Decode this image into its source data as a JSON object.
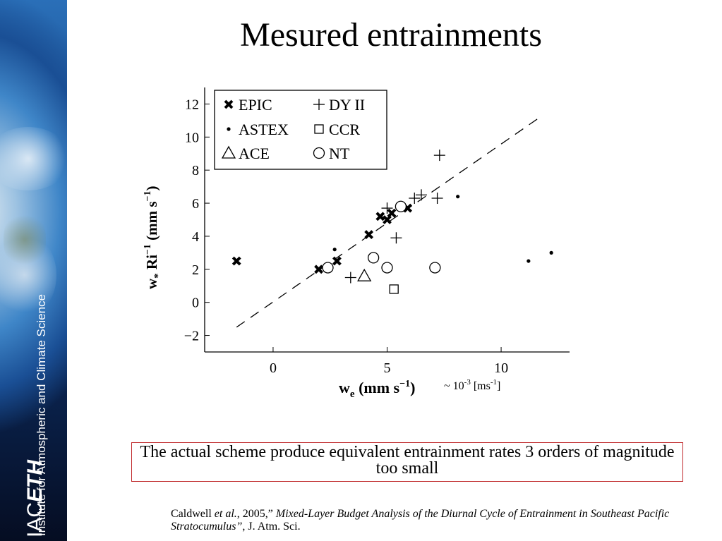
{
  "title": "Mesured entrainments",
  "sidebar": {
    "logo_iac": "IAC",
    "logo_eth": "ETH",
    "institute": "Institute for Atmospheric and Climate Science"
  },
  "chart_data": {
    "type": "scatter",
    "title": "",
    "xlabel": "w",
    "xlabel_sub": "e",
    "xlabel_units": "(mm s−1)",
    "xlabel_note": "~ 10-3 [ms-1]",
    "ylabel": "w* Ri−1 (mm s−1)",
    "xlim": [
      -3,
      13
    ],
    "ylim": [
      -3,
      13
    ],
    "xticks": [
      0,
      5,
      10
    ],
    "yticks": [
      -2,
      0,
      2,
      4,
      6,
      8,
      10,
      12
    ],
    "legend_position": "top-left",
    "grid": false,
    "reference_line": {
      "style": "dashed",
      "x": [
        -1.6,
        11.7
      ],
      "y": [
        -1.5,
        11.2
      ]
    },
    "series": [
      {
        "name": "EPIC",
        "marker": "x-bold",
        "points": [
          [
            -1.6,
            2.5
          ],
          [
            2.0,
            2.0
          ],
          [
            2.8,
            2.5
          ],
          [
            4.2,
            4.1
          ],
          [
            4.7,
            5.2
          ],
          [
            5.0,
            5.0
          ],
          [
            5.2,
            5.4
          ],
          [
            5.9,
            5.7
          ]
        ]
      },
      {
        "name": "ASTEX",
        "marker": "dot",
        "points": [
          [
            2.7,
            3.2
          ],
          [
            8.1,
            6.4
          ],
          [
            11.2,
            2.5
          ],
          [
            12.2,
            3.0
          ]
        ]
      },
      {
        "name": "ACE",
        "marker": "triangle",
        "points": [
          [
            4.0,
            1.6
          ]
        ]
      },
      {
        "name": "DY II",
        "marker": "plus",
        "points": [
          [
            3.4,
            1.5
          ],
          [
            5.0,
            5.7
          ],
          [
            5.4,
            3.9
          ],
          [
            6.2,
            6.3
          ],
          [
            6.5,
            6.5
          ],
          [
            7.2,
            6.3
          ],
          [
            7.3,
            8.9
          ]
        ]
      },
      {
        "name": "CCR",
        "marker": "square",
        "points": [
          [
            5.3,
            0.8
          ]
        ]
      },
      {
        "name": "NT",
        "marker": "circle",
        "points": [
          [
            2.4,
            2.1
          ],
          [
            4.4,
            2.7
          ],
          [
            5.0,
            2.1
          ],
          [
            5.6,
            5.8
          ],
          [
            7.1,
            2.1
          ]
        ]
      }
    ]
  },
  "note": "The actual scheme produce equivalent entrainment rates  3 orders of magnitude too small",
  "citation": {
    "author": "Caldwell ",
    "etal": "et al.",
    "year": ", 2005,” ",
    "paper_title": "Mixed-Layer Budget Analysis of the Diurnal Cycle of Entrainment in Southeast Pacific Stratocumulus”",
    "journal": ", J. Atm. Sci."
  }
}
